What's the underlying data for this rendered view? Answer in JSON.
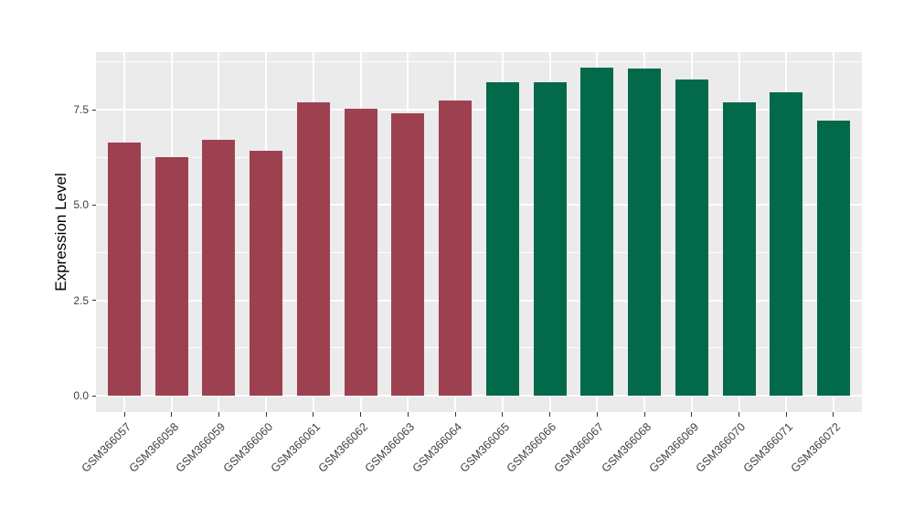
{
  "figure": {
    "background_color": "#FFFFFF",
    "panel_background_color": "#EBEBEB",
    "gridline_color": "#FFFFFF",
    "tick_mark_color": "#333333",
    "axis_text_color": "#404040",
    "axis_title_color": "#000000"
  },
  "chart_data": {
    "type": "bar",
    "title": "",
    "xlabel": "",
    "ylabel": "Expression Level",
    "categories": [
      "GSM366057",
      "GSM366058",
      "GSM366059",
      "GSM366060",
      "GSM366061",
      "GSM366062",
      "GSM366063",
      "GSM366064",
      "GSM366065",
      "GSM366066",
      "GSM366067",
      "GSM366068",
      "GSM366069",
      "GSM366070",
      "GSM366071",
      "GSM366072"
    ],
    "values": [
      6.65,
      6.25,
      6.7,
      6.42,
      7.7,
      7.52,
      7.4,
      7.74,
      8.21,
      8.22,
      8.6,
      8.58,
      8.3,
      7.7,
      7.96,
      7.22
    ],
    "bar_group": [
      0,
      0,
      0,
      0,
      0,
      0,
      0,
      0,
      1,
      1,
      1,
      1,
      1,
      1,
      1,
      1
    ],
    "series": [
      {
        "name": "GSM366057-GSM366064",
        "color": "#9D4151"
      },
      {
        "name": "GSM366065-GSM366072",
        "color": "#02694B"
      }
    ],
    "ylim": [
      -0.43,
      9.01
    ],
    "ytick_values": [
      0,
      2.5,
      5,
      7.5
    ],
    "ytick_labels": [
      "0.0",
      "2.5",
      "5.0",
      "7.5"
    ],
    "yminor_values": [
      1.25,
      3.75,
      6.25,
      8.75
    ],
    "grid": true,
    "legend_position": "none",
    "x_label_rotation_deg": 45
  }
}
